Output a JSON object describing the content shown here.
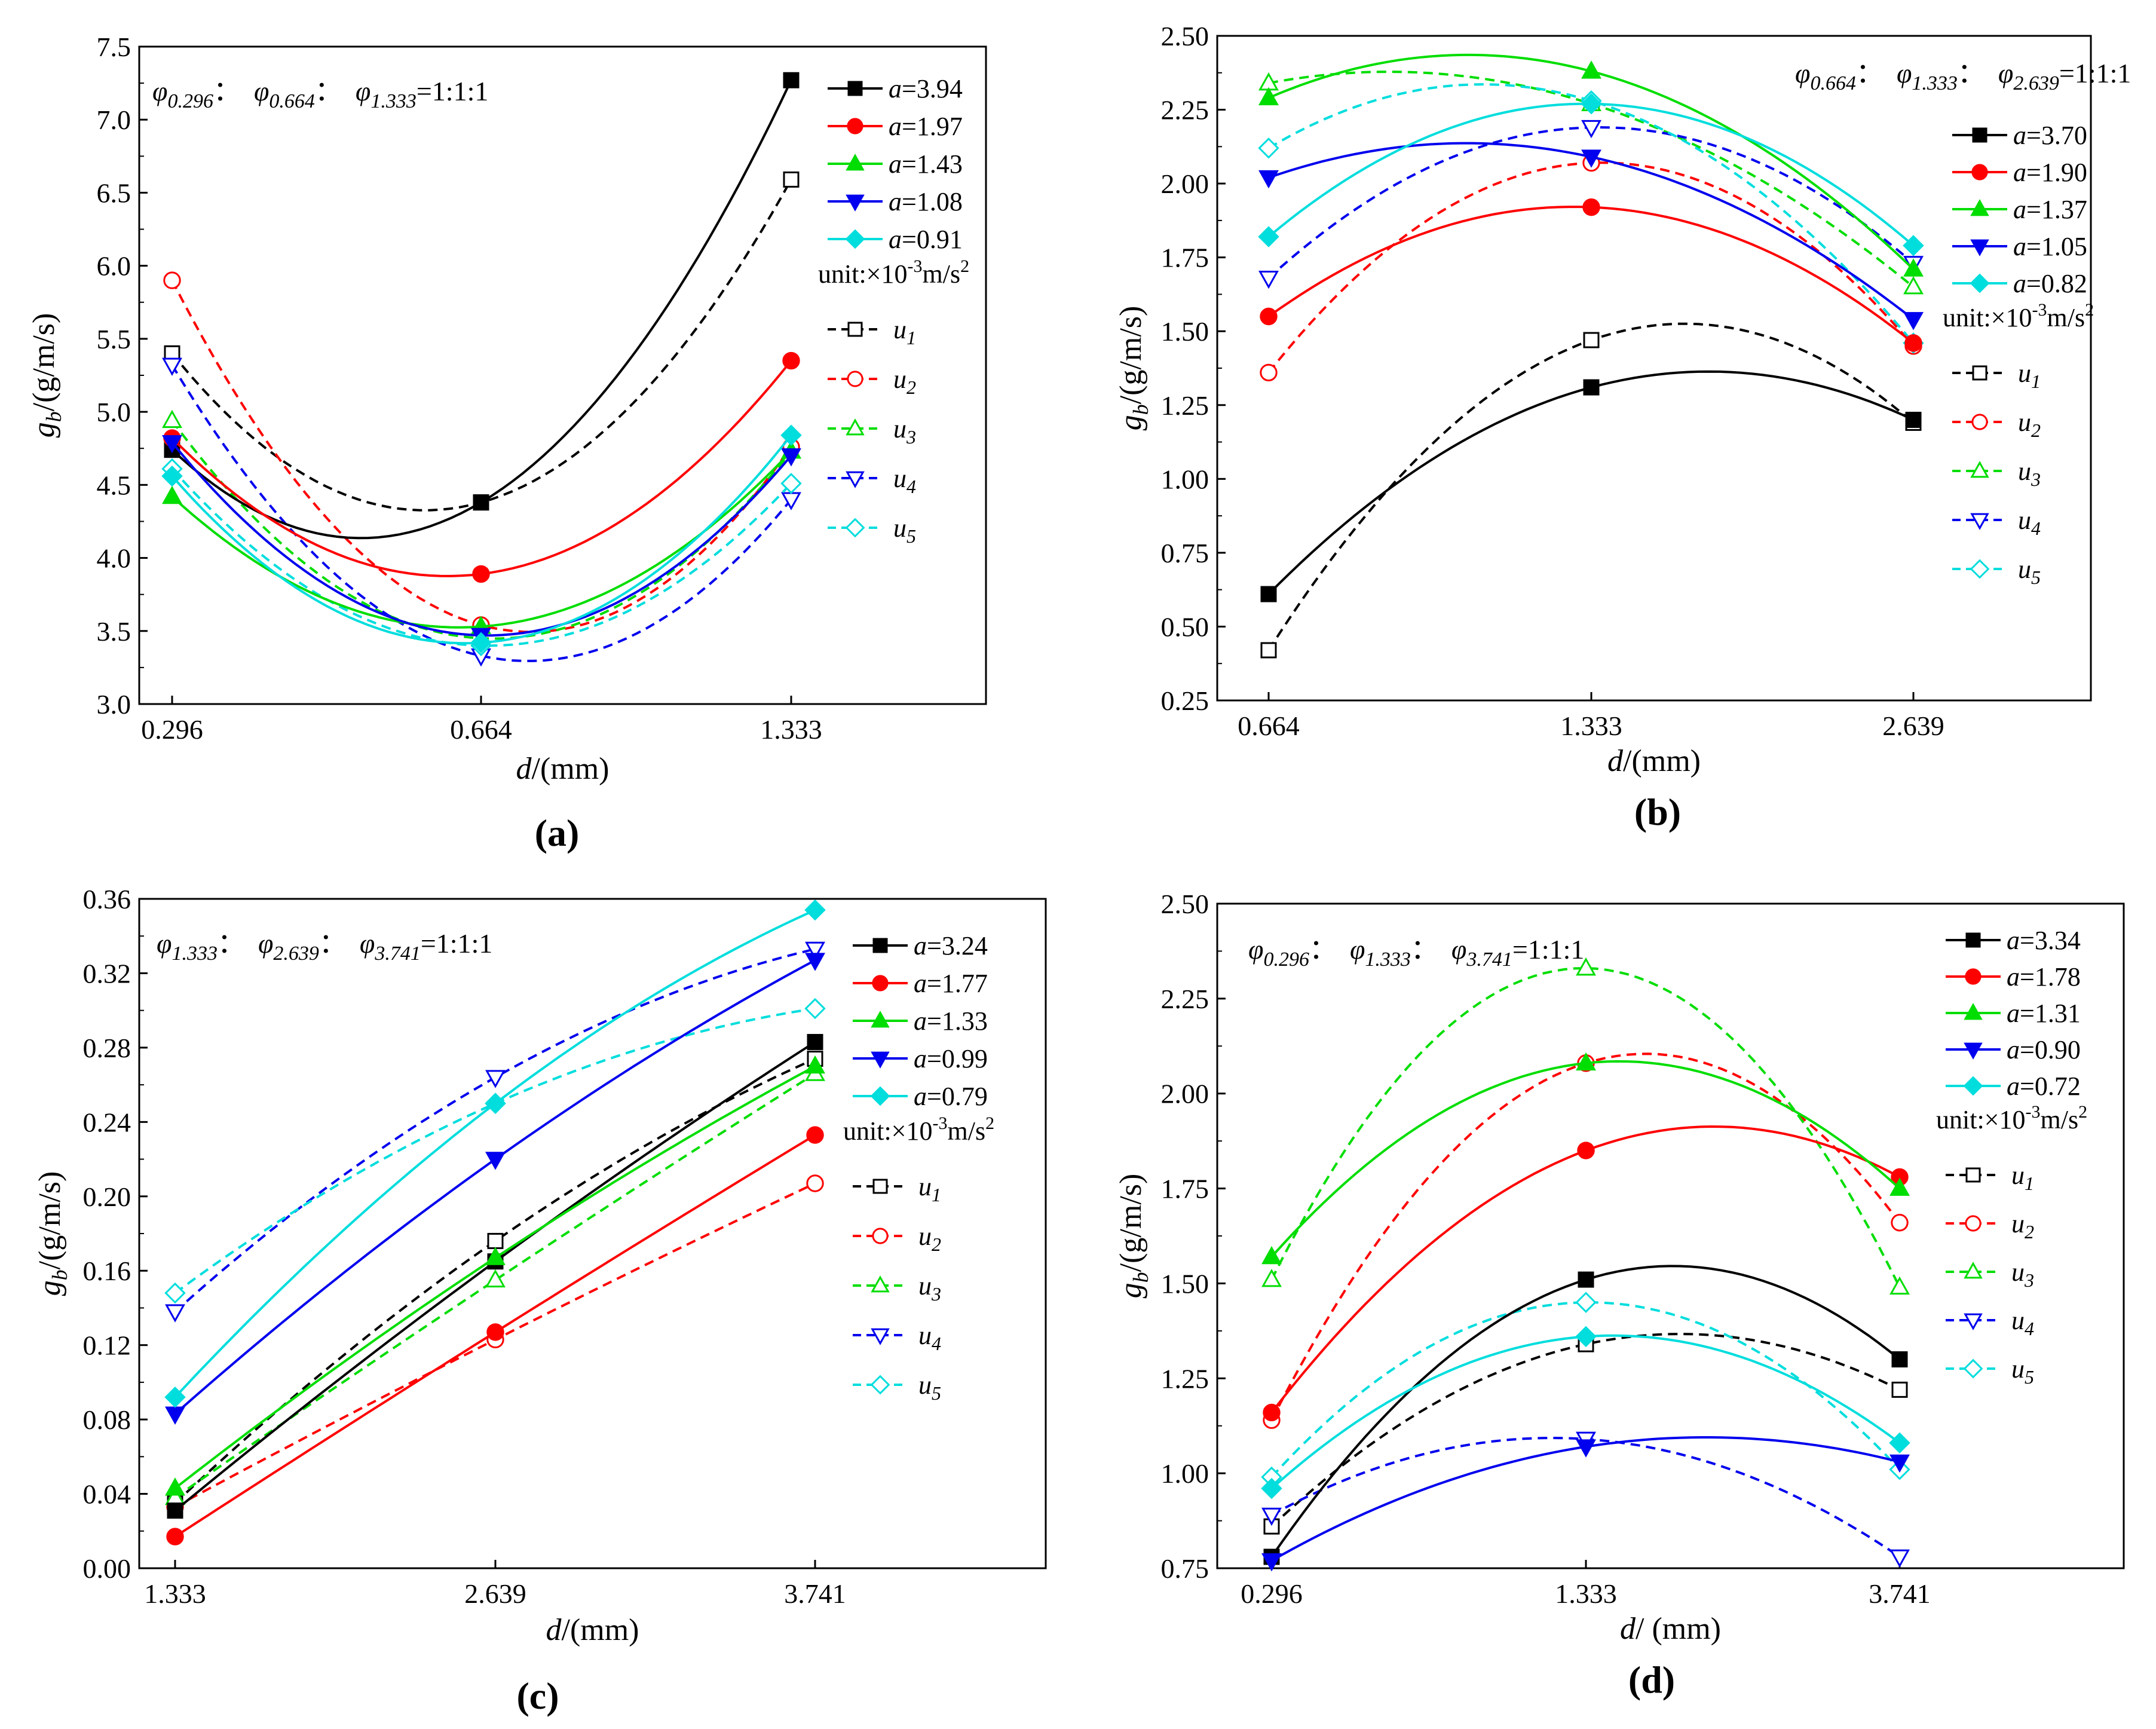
{
  "chart_data": [
    {
      "id": "a",
      "type": "line",
      "panel_label": "a",
      "ratio": {
        "phis": [
          "0.296",
          "0.664",
          "1.333"
        ],
        "value": "=1:1:1"
      },
      "categories": [
        "0.296",
        "0.664",
        "1.333"
      ],
      "xlabel": {
        "var": "d",
        "unit": "/(mm)"
      },
      "ylabel": {
        "var": "g",
        "sub": "b",
        "unit": "/(g/m/s)"
      },
      "ylim": [
        3.0,
        7.5
      ],
      "yticks": [
        "3.0",
        "3.5",
        "4.0",
        "4.5",
        "5.0",
        "5.5",
        "6.0",
        "6.5",
        "7.0",
        "7.5"
      ],
      "unit_text": "unit:×10",
      "unit_exp": "-3",
      "unit_tail": "m/s",
      "unit_sq": "2",
      "series_a": [
        {
          "name": "a=3.94",
          "value": "3.94",
          "color": "#000000",
          "marker": "square",
          "values": [
            4.74,
            4.38,
            7.27
          ]
        },
        {
          "name": "a=1.97",
          "value": "1.97",
          "color": "#ff0000",
          "marker": "circle",
          "values": [
            4.82,
            3.89,
            5.35
          ]
        },
        {
          "name": "a=1.43",
          "value": "1.43",
          "color": "#00dd00",
          "marker": "triangle",
          "values": [
            4.42,
            3.53,
            4.73
          ]
        },
        {
          "name": "a=1.08",
          "value": "1.08",
          "color": "#0000ee",
          "marker": "triangle-down",
          "values": [
            4.79,
            3.47,
            4.7
          ]
        },
        {
          "name": "a=0.91",
          "value": "0.91",
          "color": "#00dddd",
          "marker": "diamond",
          "values": [
            4.56,
            3.42,
            4.84
          ]
        }
      ],
      "series_u": [
        {
          "name": "u1",
          "sub": "1",
          "color": "#000000",
          "marker": "square",
          "values": [
            5.4,
            4.38,
            6.59
          ]
        },
        {
          "name": "u2",
          "sub": "2",
          "color": "#ff0000",
          "marker": "circle",
          "values": [
            5.9,
            3.54,
            4.76
          ]
        },
        {
          "name": "u3",
          "sub": "3",
          "color": "#00dd00",
          "marker": "triangle",
          "values": [
            4.94,
            3.45,
            4.73
          ]
        },
        {
          "name": "u4",
          "sub": "4",
          "color": "#0000ee",
          "marker": "triangle-down",
          "values": [
            5.32,
            3.33,
            4.4
          ]
        },
        {
          "name": "u5",
          "sub": "5",
          "color": "#00dddd",
          "marker": "diamond",
          "values": [
            4.61,
            3.4,
            4.51
          ]
        }
      ]
    },
    {
      "id": "b",
      "type": "line",
      "panel_label": "b",
      "ratio": {
        "phis": [
          "0.664",
          "1.333",
          "2.639"
        ],
        "value": "=1:1:1"
      },
      "categories": [
        "0.664",
        "1.333",
        "2.639"
      ],
      "xlabel": {
        "var": "d",
        "unit": "/(mm)"
      },
      "ylabel": {
        "var": "g",
        "sub": "b",
        "unit": "/(g/m/s)"
      },
      "ylim": [
        0.25,
        2.5
      ],
      "yticks": [
        "0.25",
        "0.50",
        "0.75",
        "1.00",
        "1.25",
        "1.50",
        "1.75",
        "2.00",
        "2.25",
        "2.50"
      ],
      "unit_text": "unit:×10",
      "unit_exp": "-3",
      "unit_tail": "m/s",
      "unit_sq": "2",
      "series_a": [
        {
          "name": "a=3.70",
          "value": "3.70",
          "color": "#000000",
          "marker": "square",
          "values": [
            0.61,
            1.31,
            1.2
          ]
        },
        {
          "name": "a=1.90",
          "value": "1.90",
          "color": "#ff0000",
          "marker": "circle",
          "values": [
            1.55,
            1.92,
            1.46
          ]
        },
        {
          "name": "a=1.37",
          "value": "1.37",
          "color": "#00dd00",
          "marker": "triangle",
          "values": [
            2.29,
            2.38,
            1.71
          ]
        },
        {
          "name": "a=1.05",
          "value": "1.05",
          "color": "#0000ee",
          "marker": "triangle-down",
          "values": [
            2.02,
            2.09,
            1.54
          ]
        },
        {
          "name": "a=0.82",
          "value": "0.82",
          "color": "#00dddd",
          "marker": "diamond",
          "values": [
            1.82,
            2.27,
            1.79
          ]
        }
      ],
      "series_u": [
        {
          "name": "u1",
          "sub": "1",
          "color": "#000000",
          "marker": "square",
          "values": [
            0.42,
            1.47,
            1.19
          ]
        },
        {
          "name": "u2",
          "sub": "2",
          "color": "#ff0000",
          "marker": "circle",
          "values": [
            1.36,
            2.07,
            1.45
          ]
        },
        {
          "name": "u3",
          "sub": "3",
          "color": "#00dd00",
          "marker": "triangle",
          "values": [
            2.34,
            2.27,
            1.65
          ]
        },
        {
          "name": "u4",
          "sub": "4",
          "color": "#0000ee",
          "marker": "triangle-down",
          "values": [
            1.68,
            2.19,
            1.73
          ]
        },
        {
          "name": "u5",
          "sub": "5",
          "color": "#00dddd",
          "marker": "diamond",
          "values": [
            2.12,
            2.28,
            1.46
          ]
        }
      ]
    },
    {
      "id": "c",
      "type": "line",
      "panel_label": "c",
      "ratio": {
        "phis": [
          "1.333",
          "2.639",
          "3.741"
        ],
        "value": "=1:1:1"
      },
      "categories": [
        "1.333",
        "2.639",
        "3.741"
      ],
      "xlabel": {
        "var": "d",
        "unit": "/(mm)"
      },
      "ylabel": {
        "var": "g",
        "sub": "b",
        "unit": "/(g/m/s)"
      },
      "ylim": [
        0.0,
        0.36
      ],
      "yticks": [
        "0.00",
        "0.04",
        "0.08",
        "0.12",
        "0.16",
        "0.20",
        "0.24",
        "0.28",
        "0.32",
        "0.36"
      ],
      "unit_text": "unit:×10",
      "unit_exp": "-3",
      "unit_tail": "m/s",
      "unit_sq": "2",
      "series_a": [
        {
          "name": "a=3.24",
          "value": "3.24",
          "color": "#000000",
          "marker": "square",
          "values": [
            0.031,
            0.165,
            0.283
          ]
        },
        {
          "name": "a=1.77",
          "value": "1.77",
          "color": "#ff0000",
          "marker": "circle",
          "values": [
            0.017,
            0.127,
            0.233
          ]
        },
        {
          "name": "a=1.33",
          "value": "1.33",
          "color": "#00dd00",
          "marker": "triangle",
          "values": [
            0.043,
            0.167,
            0.27
          ]
        },
        {
          "name": "a=0.99",
          "value": "0.99",
          "color": "#0000ee",
          "marker": "triangle-down",
          "values": [
            0.083,
            0.22,
            0.327
          ]
        },
        {
          "name": "a=0.79",
          "value": "0.79",
          "color": "#00dddd",
          "marker": "diamond",
          "values": [
            0.092,
            0.25,
            0.354
          ]
        }
      ],
      "series_u": [
        {
          "name": "u1",
          "sub": "1",
          "color": "#000000",
          "marker": "square",
          "values": [
            0.035,
            0.176,
            0.274
          ]
        },
        {
          "name": "u2",
          "sub": "2",
          "color": "#ff0000",
          "marker": "circle",
          "values": [
            0.033,
            0.123,
            0.207
          ]
        },
        {
          "name": "u3",
          "sub": "3",
          "color": "#00dd00",
          "marker": "triangle",
          "values": [
            0.038,
            0.155,
            0.266
          ]
        },
        {
          "name": "u4",
          "sub": "4",
          "color": "#0000ee",
          "marker": "triangle-down",
          "values": [
            0.138,
            0.264,
            0.333
          ]
        },
        {
          "name": "u5",
          "sub": "5",
          "color": "#00dddd",
          "marker": "diamond",
          "values": [
            0.148,
            0.25,
            0.301
          ]
        }
      ]
    },
    {
      "id": "d",
      "type": "line",
      "panel_label": "d",
      "ratio": {
        "phis": [
          "0.296",
          "1.333",
          "3.741"
        ],
        "value": "=1:1:1"
      },
      "categories": [
        "0.296",
        "1.333",
        "3.741"
      ],
      "xlabel": {
        "var": "d",
        "unit": "/ (mm)"
      },
      "ylabel": {
        "var": "g",
        "sub": "b",
        "unit": "/(g/m/s)"
      },
      "ylim": [
        0.75,
        2.5
      ],
      "yticks": [
        "0.75",
        "1.00",
        "1.25",
        "1.50",
        "1.75",
        "2.00",
        "2.25",
        "2.50"
      ],
      "unit_text": "unit:×10",
      "unit_exp": "-3",
      "unit_tail": "m/s",
      "unit_sq": "2",
      "series_a": [
        {
          "name": "a=3.34",
          "value": "3.34",
          "color": "#000000",
          "marker": "square",
          "values": [
            0.78,
            1.51,
            1.3
          ]
        },
        {
          "name": "a=1.78",
          "value": "1.78",
          "color": "#ff0000",
          "marker": "circle",
          "values": [
            1.16,
            1.85,
            1.78
          ]
        },
        {
          "name": "a=1.31",
          "value": "1.31",
          "color": "#00dd00",
          "marker": "triangle",
          "values": [
            1.57,
            2.08,
            1.75
          ]
        },
        {
          "name": "a=0.90",
          "value": "0.90",
          "color": "#0000ee",
          "marker": "triangle-down",
          "values": [
            0.77,
            1.07,
            1.03
          ]
        },
        {
          "name": "a=0.72",
          "value": "0.72",
          "color": "#00dddd",
          "marker": "diamond",
          "values": [
            0.96,
            1.36,
            1.08
          ]
        }
      ],
      "series_u": [
        {
          "name": "u1",
          "sub": "1",
          "color": "#000000",
          "marker": "square",
          "values": [
            0.86,
            1.34,
            1.22
          ]
        },
        {
          "name": "u2",
          "sub": "2",
          "color": "#ff0000",
          "marker": "circle",
          "values": [
            1.14,
            2.08,
            1.66
          ]
        },
        {
          "name": "u3",
          "sub": "3",
          "color": "#00dd00",
          "marker": "triangle",
          "values": [
            1.51,
            2.33,
            1.49
          ]
        },
        {
          "name": "u4",
          "sub": "4",
          "color": "#0000ee",
          "marker": "triangle-down",
          "values": [
            0.89,
            1.09,
            0.78
          ]
        },
        {
          "name": "u5",
          "sub": "5",
          "color": "#00dddd",
          "marker": "diamond",
          "values": [
            0.99,
            1.45,
            1.01
          ]
        }
      ]
    }
  ]
}
